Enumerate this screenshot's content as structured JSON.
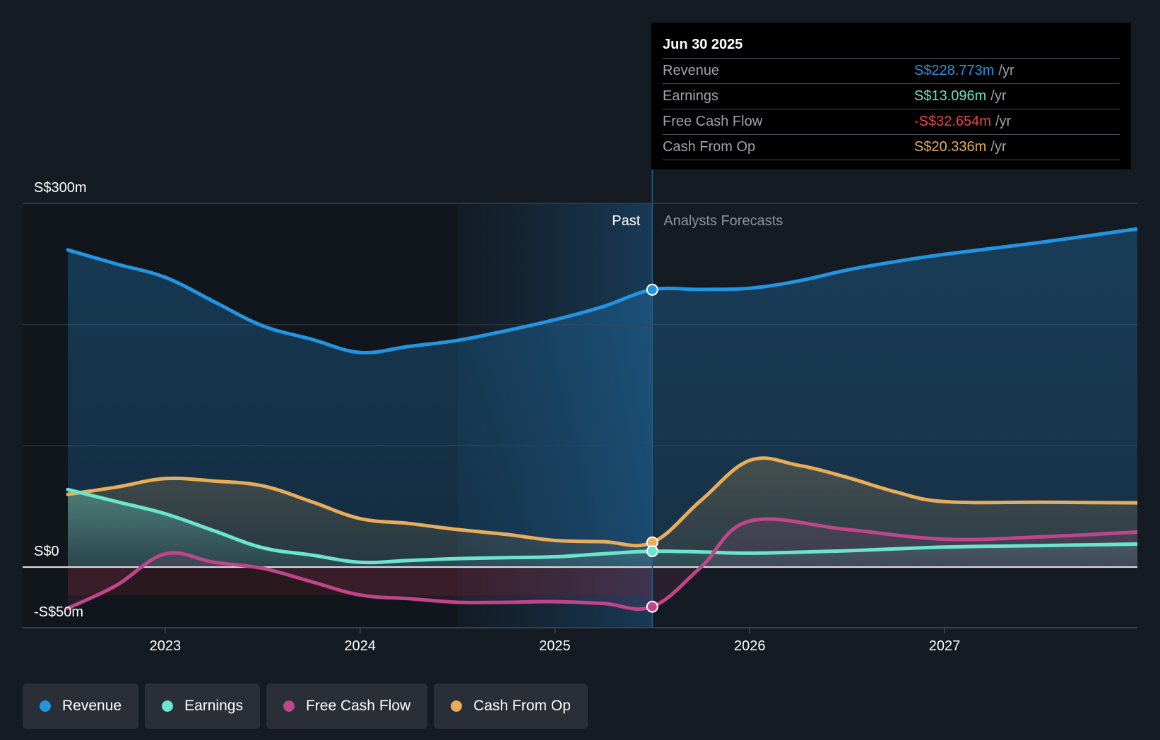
{
  "chart_data": {
    "type": "area",
    "title": "",
    "xlabel": "",
    "ylabel": "",
    "ylim": [
      -50,
      300
    ],
    "xlim": [
      2022.5,
      2027.99
    ],
    "y_ticks": [
      {
        "value": 300,
        "label": "S$300m"
      },
      {
        "value": 0,
        "label": "S$0"
      },
      {
        "value": -50,
        "label": "-S$50m"
      }
    ],
    "y_gridlines": [
      300,
      200,
      100,
      0
    ],
    "x_ticks": [
      {
        "value": 2023,
        "label": "2023"
      },
      {
        "value": 2024,
        "label": "2024"
      },
      {
        "value": 2025,
        "label": "2025"
      },
      {
        "value": 2026,
        "label": "2026"
      },
      {
        "value": 2027,
        "label": "2027"
      }
    ],
    "past_label": "Past",
    "forecast_label": "Analysts Forecasts",
    "divider_x": 2025.5,
    "past_highlight_start": 2024.5,
    "legend_position": "bottom-left",
    "series": [
      {
        "name": "Revenue",
        "color": "#2394df",
        "x": [
          2022.5,
          2022.75,
          2023.0,
          2023.25,
          2023.5,
          2023.75,
          2024.0,
          2024.25,
          2024.5,
          2024.75,
          2025.0,
          2025.25,
          2025.5,
          2025.75,
          2026.0,
          2026.25,
          2026.5,
          2026.75,
          2027.0,
          2027.5,
          2027.99
        ],
        "values": [
          261.6,
          250,
          239,
          219,
          199,
          188,
          177,
          182,
          187,
          195,
          204,
          215,
          228.773,
          229,
          230,
          236,
          245,
          252,
          258,
          268,
          279
        ]
      },
      {
        "name": "Earnings",
        "color": "#6be4d0",
        "x": [
          2022.5,
          2022.75,
          2023.0,
          2023.25,
          2023.5,
          2023.75,
          2024.0,
          2024.25,
          2024.5,
          2024.75,
          2025.0,
          2025.25,
          2025.5,
          2025.75,
          2026.0,
          2026.5,
          2027.0,
          2027.5,
          2027.99
        ],
        "values": [
          64,
          54,
          44,
          30,
          16,
          10,
          4,
          5.5,
          7,
          7.8,
          8.5,
          11,
          13.096,
          12.5,
          11.5,
          13.5,
          16.5,
          17.8,
          19
        ]
      },
      {
        "name": "Free Cash Flow",
        "color": "#c0468a",
        "x": [
          2022.5,
          2022.75,
          2023.0,
          2023.25,
          2023.5,
          2023.75,
          2024.0,
          2024.25,
          2024.5,
          2024.75,
          2025.0,
          2025.25,
          2025.5,
          2025.75,
          2026.0,
          2026.5,
          2027.0,
          2027.5,
          2027.99
        ],
        "values": [
          -34,
          -15,
          11,
          4,
          -1,
          -12,
          -23,
          -26,
          -29,
          -29,
          -28.5,
          -30,
          -32.654,
          0,
          38,
          31,
          23,
          25,
          29
        ]
      },
      {
        "name": "Cash From Op",
        "color": "#e7ad5a",
        "x": [
          2022.5,
          2022.75,
          2023.0,
          2023.25,
          2023.5,
          2023.75,
          2024.0,
          2024.25,
          2024.5,
          2024.75,
          2025.0,
          2025.25,
          2025.5,
          2025.75,
          2026.0,
          2026.25,
          2026.5,
          2026.75,
          2027.0,
          2027.5,
          2027.99
        ],
        "values": [
          60,
          66,
          73,
          71,
          67,
          54,
          40,
          36,
          31,
          27,
          22,
          21,
          20.336,
          55,
          88,
          84,
          74,
          62,
          54,
          53.5,
          53
        ]
      }
    ]
  },
  "tooltip": {
    "date": "Jun 30 2025",
    "unit": "/yr",
    "rows": [
      {
        "label": "Revenue",
        "value": "S$228.773m",
        "color": "#2394df"
      },
      {
        "label": "Earnings",
        "value": "S$13.096m",
        "color": "#6be4d0"
      },
      {
        "label": "Free Cash Flow",
        "value": "-S$32.654m",
        "color": "#e84545"
      },
      {
        "label": "Cash From Op",
        "value": "S$20.336m",
        "color": "#e7ad5a"
      }
    ]
  },
  "legend": [
    {
      "label": "Revenue",
      "color": "#2394df"
    },
    {
      "label": "Earnings",
      "color": "#6be4d0"
    },
    {
      "label": "Free Cash Flow",
      "color": "#c0468a"
    },
    {
      "label": "Cash From Op",
      "color": "#e7ad5a"
    }
  ]
}
